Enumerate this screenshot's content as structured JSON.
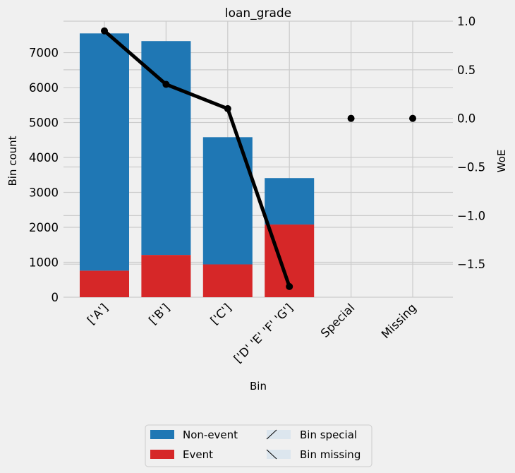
{
  "chart_data": {
    "type": "bar",
    "title": "loan_grade",
    "xlabel": "Bin",
    "ylabel": "Bin count",
    "y2label": "WoE",
    "categories": [
      "['A']",
      "['B']",
      "['C']",
      "['D' 'E' 'F' 'G']",
      "Special",
      "Missing"
    ],
    "series": [
      {
        "name": "Non-event",
        "color": "#1f77b4",
        "values": [
          6790,
          6120,
          3640,
          1330,
          0,
          0
        ]
      },
      {
        "name": "Event",
        "color": "#d62728",
        "values": [
          760,
          1210,
          940,
          2080,
          0,
          0
        ]
      }
    ],
    "woe": {
      "color": "#000000",
      "values": [
        0.9,
        0.35,
        0.1,
        -1.73,
        0.0,
        0.0
      ]
    },
    "ylim": [
      0,
      7900
    ],
    "y_ticks": [
      0,
      1000,
      2000,
      3000,
      4000,
      5000,
      6000,
      7000
    ],
    "y2lim": [
      -1.84,
      1.0
    ],
    "y2_ticks": [
      1.0,
      0.5,
      0.0,
      -0.5,
      -1.0,
      -1.5
    ],
    "y2_tick_labels": [
      "1.0",
      "0.5",
      "0.0",
      "−0.5",
      "−1.0",
      "−1.5"
    ],
    "legend": {
      "position": "bottom-center",
      "items": [
        "Non-event",
        "Event",
        "Bin special",
        "Bin missing"
      ]
    },
    "grid": true
  }
}
